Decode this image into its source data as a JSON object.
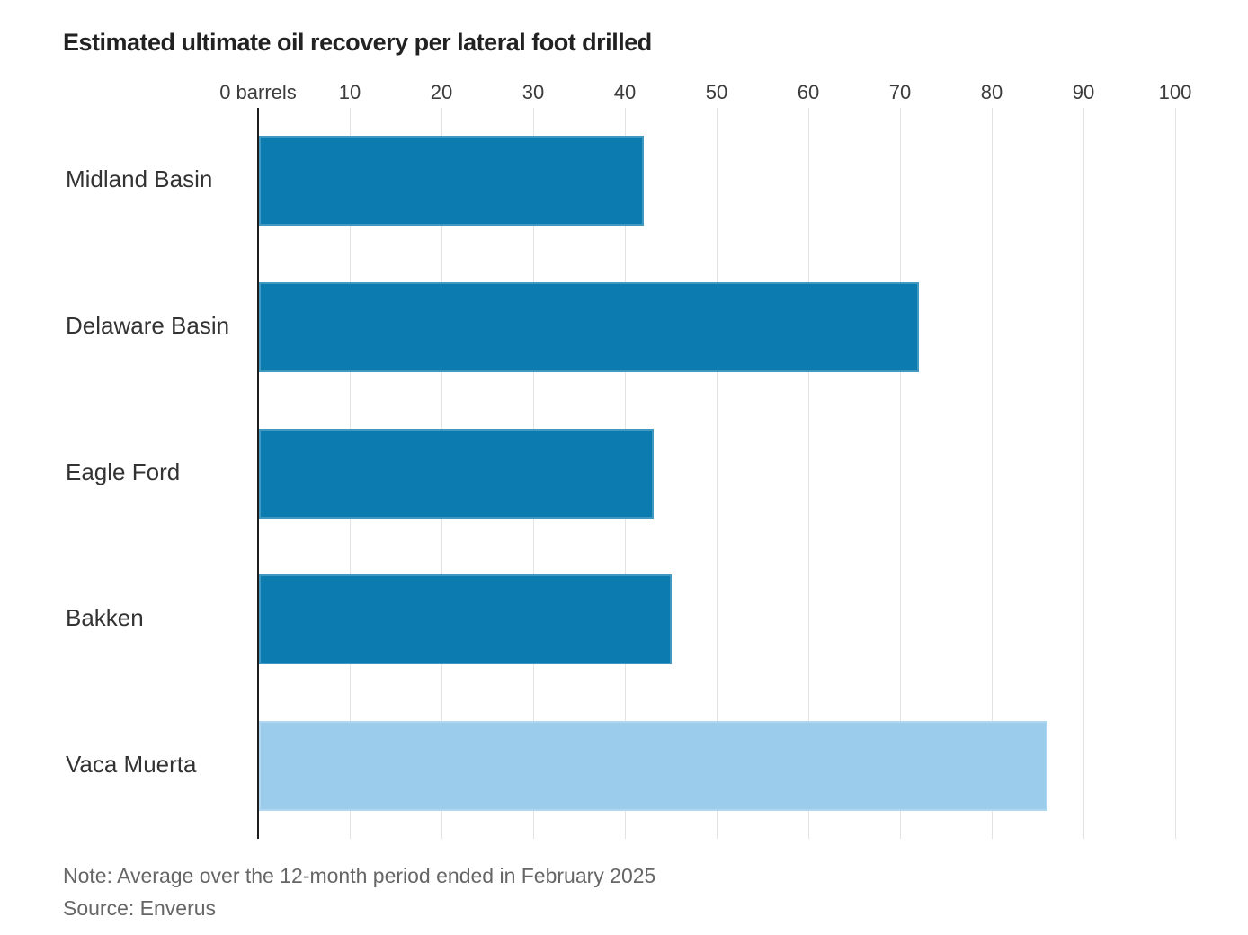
{
  "chart_data": {
    "type": "bar",
    "orientation": "horizontal",
    "title": "Estimated ultimate oil recovery per lateral foot drilled",
    "categories": [
      "Midland Basin",
      "Delaware Basin",
      "Eagle Ford",
      "Bakken",
      "Vaca Muerta"
    ],
    "values": [
      42,
      72,
      43,
      45,
      86
    ],
    "x_ticks": [
      0,
      10,
      20,
      30,
      40,
      50,
      60,
      70,
      80,
      90,
      100
    ],
    "x_tick_zero_label": "0 barrels",
    "xlim": [
      0,
      100
    ],
    "grid": true,
    "legend": false,
    "bar_color_default": "#0c7bb0",
    "bar_color_highlight": "#9cccec",
    "highlight_category": "Vaca Muerta",
    "note": "Note: Average over the 12-month period ended in February 2025",
    "source": "Source: Enverus"
  },
  "colors": {
    "background": "#ffffff",
    "title": "#222222",
    "tick_label": "#3c3c3c",
    "category_label": "#333333",
    "note": "#666666",
    "axis": "#1d1d1d",
    "gridline": "#e3e3e3"
  }
}
